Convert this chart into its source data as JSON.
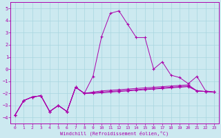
{
  "xlabel": "Windchill (Refroidissement éolien,°C)",
  "bg_color": "#cce9f0",
  "grid_color": "#a8d5e0",
  "line_color": "#aa00aa",
  "xlim": [
    -0.5,
    23.5
  ],
  "ylim": [
    -4.5,
    5.5
  ],
  "yticks": [
    -4,
    -3,
    -2,
    -1,
    0,
    1,
    2,
    3,
    4,
    5
  ],
  "xticks": [
    0,
    1,
    2,
    3,
    4,
    5,
    6,
    7,
    8,
    9,
    10,
    11,
    12,
    13,
    14,
    15,
    16,
    17,
    18,
    19,
    20,
    21,
    22,
    23
  ],
  "x": [
    0,
    1,
    2,
    3,
    4,
    5,
    6,
    7,
    8,
    9,
    10,
    11,
    12,
    13,
    14,
    15,
    16,
    17,
    18,
    19,
    20,
    21,
    22,
    23
  ],
  "line1": [
    -3.8,
    -2.6,
    -2.3,
    -2.2,
    -3.5,
    -3.0,
    -3.5,
    -1.5,
    -2.0,
    -0.6,
    2.7,
    4.6,
    4.8,
    3.7,
    2.6,
    2.6,
    0.0,
    0.6,
    -0.5,
    -0.7,
    -1.2,
    -0.6,
    -1.8,
    -1.9
  ],
  "line2": [
    -3.8,
    -2.6,
    -2.3,
    -2.2,
    -3.5,
    -3.0,
    -3.5,
    -1.5,
    -2.0,
    -1.9,
    -1.8,
    -1.75,
    -1.7,
    -1.65,
    -1.6,
    -1.55,
    -1.5,
    -1.45,
    -1.4,
    -1.35,
    -1.3,
    -1.8,
    -1.85,
    -1.9
  ],
  "line3": [
    -3.8,
    -2.6,
    -2.3,
    -2.2,
    -3.5,
    -3.0,
    -3.5,
    -1.5,
    -2.0,
    -1.95,
    -1.9,
    -1.85,
    -1.8,
    -1.75,
    -1.7,
    -1.65,
    -1.6,
    -1.55,
    -1.5,
    -1.45,
    -1.4,
    -1.8,
    -1.85,
    -1.9
  ],
  "line4": [
    -3.8,
    -2.6,
    -2.3,
    -2.2,
    -3.5,
    -3.0,
    -3.5,
    -1.5,
    -2.0,
    -2.0,
    -1.95,
    -1.9,
    -1.85,
    -1.8,
    -1.75,
    -1.7,
    -1.65,
    -1.6,
    -1.55,
    -1.5,
    -1.45,
    -1.8,
    -1.85,
    -1.9
  ]
}
